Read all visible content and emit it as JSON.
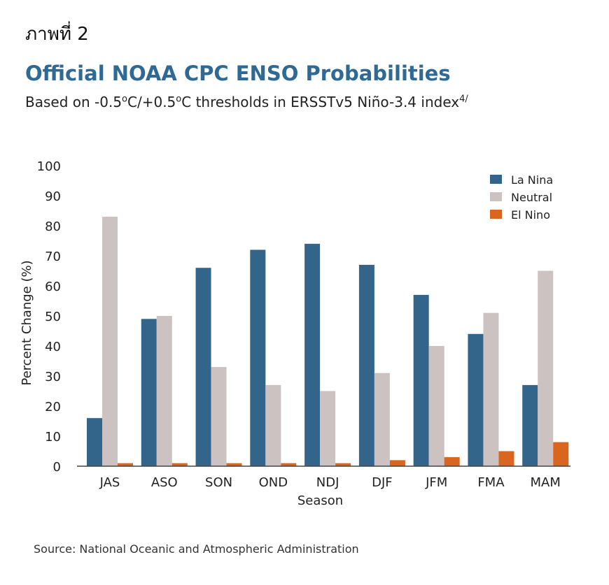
{
  "header": {
    "figure_label": "ภาพที่ 2",
    "title": "Official NOAA CPC ENSO Probabilities",
    "subtitle_prefix": "Based on -0.5",
    "subtitle_sup1": "o",
    "subtitle_mid": "C/+0.5",
    "subtitle_sup2": "o",
    "subtitle_suffix": "C thresholds in ERSSTv5 Niño-3.4 index",
    "subtitle_sup3": "4/"
  },
  "footer": {
    "source": "Source: National Oceanic and Atmospheric Administration"
  },
  "chart_data": {
    "type": "bar",
    "xlabel": "Season",
    "ylabel": "Percent Change (%)",
    "ylim": [
      0,
      100
    ],
    "yticks": [
      0,
      10,
      20,
      30,
      40,
      50,
      60,
      70,
      80,
      90,
      100
    ],
    "grid": false,
    "legend_position": "top-right",
    "categories": [
      "JAS",
      "ASO",
      "SON",
      "OND",
      "NDJ",
      "DJF",
      "JFM",
      "FMA",
      "MAM"
    ],
    "series": [
      {
        "name": "La Nina",
        "color": "#33658b",
        "values": [
          16,
          49,
          66,
          72,
          74,
          67,
          57,
          44,
          27
        ]
      },
      {
        "name": "Neutral",
        "color": "#cdc2c2",
        "values": [
          83,
          50,
          33,
          27,
          25,
          31,
          40,
          51,
          65
        ]
      },
      {
        "name": "El Nino",
        "color": "#d9651f",
        "values": [
          1,
          1,
          1,
          1,
          1,
          2,
          3,
          5,
          8
        ]
      }
    ]
  }
}
